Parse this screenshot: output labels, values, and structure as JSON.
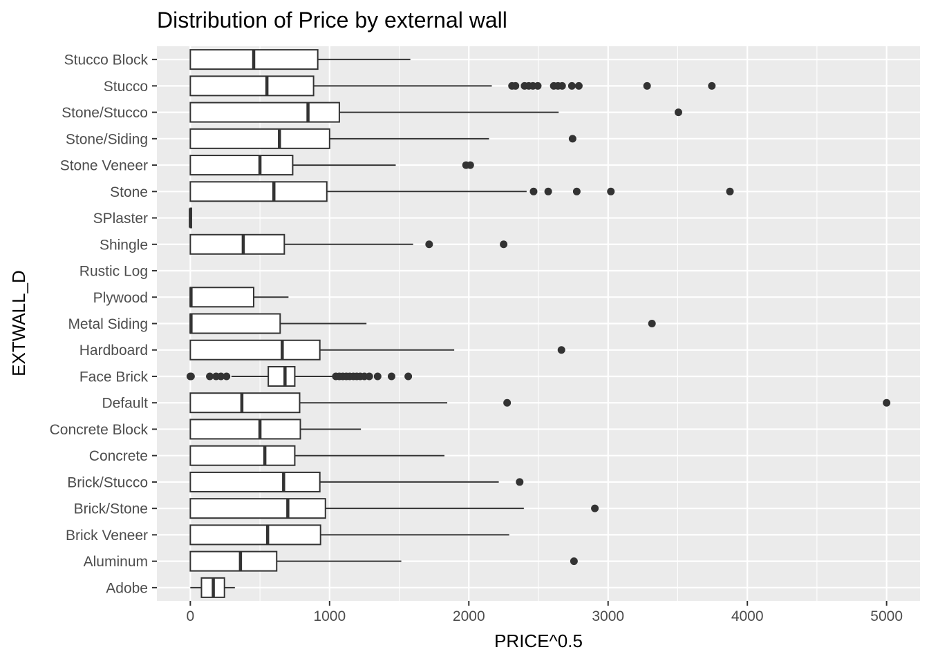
{
  "chart_data": {
    "type": "boxplot",
    "orientation": "horizontal",
    "title": "Distribution of Price by external wall",
    "xlabel": "PRICE^0.5",
    "ylabel": "EXTWALL_D",
    "xlim": [
      -240,
      5240
    ],
    "xticks": [
      0,
      1000,
      2000,
      3000,
      4000,
      5000
    ],
    "xtick_labels": [
      "0",
      "1000",
      "2000",
      "3000",
      "4000",
      "5000"
    ],
    "grid": true,
    "panel_background": "#ebebeb",
    "grid_color": "#ffffff",
    "box_color": "#333333",
    "categories": [
      "Stucco Block",
      "Stucco",
      "Stone/Stucco",
      "Stone/Siding",
      "Stone Veneer",
      "Stone",
      "SPlaster",
      "Shingle",
      "Rustic Log",
      "Plywood",
      "Metal Siding",
      "Hardboard",
      "Face Brick",
      "Default",
      "Concrete Block",
      "Concrete",
      "Brick/Stucco",
      "Brick/Stone",
      "Brick Veneer",
      "Aluminum",
      "Adobe"
    ],
    "series": [
      {
        "category": "Stucco Block",
        "whisker_low": 0,
        "q1": 0,
        "median": 455,
        "q3": 915,
        "whisker_high": 1580,
        "outliers": []
      },
      {
        "category": "Stucco",
        "whisker_low": 0,
        "q1": 0,
        "median": 550,
        "q3": 885,
        "whisker_high": 2165,
        "outliers": [
          2310,
          2335,
          2400,
          2430,
          2460,
          2495,
          2610,
          2640,
          2670,
          2740,
          2790,
          3280,
          3745
        ]
      },
      {
        "category": "Stone/Stucco",
        "whisker_low": 0,
        "q1": 0,
        "median": 845,
        "q3": 1070,
        "whisker_high": 2645,
        "outliers": [
          3505
        ]
      },
      {
        "category": "Stone/Siding",
        "whisker_low": 0,
        "q1": 0,
        "median": 640,
        "q3": 1000,
        "whisker_high": 2145,
        "outliers": [
          2745
        ]
      },
      {
        "category": "Stone Veneer",
        "whisker_low": 0,
        "q1": 0,
        "median": 500,
        "q3": 735,
        "whisker_high": 1475,
        "outliers": [
          1980,
          2010
        ]
      },
      {
        "category": "Stone",
        "whisker_low": 0,
        "q1": 0,
        "median": 600,
        "q3": 980,
        "whisker_high": 2415,
        "outliers": [
          2465,
          2570,
          2775,
          3020,
          3875
        ]
      },
      {
        "category": "SPlaster",
        "whisker_low": 0,
        "q1": 0,
        "median": 0,
        "q3": 8,
        "whisker_high": 8,
        "outliers": []
      },
      {
        "category": "Shingle",
        "whisker_low": 0,
        "q1": 0,
        "median": 380,
        "q3": 675,
        "whisker_high": 1600,
        "outliers": [
          1715,
          2250
        ]
      },
      {
        "category": "Rustic Log"
      },
      {
        "category": "Plywood",
        "whisker_low": 0,
        "q1": 0,
        "median": 5,
        "q3": 455,
        "whisker_high": 705,
        "outliers": []
      },
      {
        "category": "Metal Siding",
        "whisker_low": 0,
        "q1": 0,
        "median": 5,
        "q3": 645,
        "whisker_high": 1265,
        "outliers": [
          3315
        ]
      },
      {
        "category": "Hardboard",
        "whisker_low": 0,
        "q1": 0,
        "median": 660,
        "q3": 930,
        "whisker_high": 1895,
        "outliers": [
          2665
        ]
      },
      {
        "category": "Face Brick",
        "whisker_low": 295,
        "q1": 560,
        "median": 680,
        "q3": 750,
        "whisker_high": 1040,
        "outliers": [
          0,
          5,
          140,
          185,
          220,
          260,
          1045,
          1070,
          1095,
          1120,
          1145,
          1170,
          1195,
          1220,
          1250,
          1285,
          1345,
          1445,
          1565
        ]
      },
      {
        "category": "Default",
        "whisker_low": 0,
        "q1": 0,
        "median": 370,
        "q3": 785,
        "whisker_high": 1845,
        "outliers": [
          2275,
          5000
        ]
      },
      {
        "category": "Concrete Block",
        "whisker_low": 0,
        "q1": 0,
        "median": 500,
        "q3": 790,
        "whisker_high": 1225,
        "outliers": []
      },
      {
        "category": "Concrete",
        "whisker_low": 0,
        "q1": 0,
        "median": 535,
        "q3": 750,
        "whisker_high": 1825,
        "outliers": []
      },
      {
        "category": "Brick/Stucco",
        "whisker_low": 0,
        "q1": 0,
        "median": 670,
        "q3": 930,
        "whisker_high": 2215,
        "outliers": [
          2365
        ]
      },
      {
        "category": "Brick/Stone",
        "whisker_low": 0,
        "q1": 0,
        "median": 700,
        "q3": 970,
        "whisker_high": 2395,
        "outliers": [
          2905
        ]
      },
      {
        "category": "Brick Veneer",
        "whisker_low": 0,
        "q1": 0,
        "median": 555,
        "q3": 935,
        "whisker_high": 2290,
        "outliers": []
      },
      {
        "category": "Aluminum",
        "whisker_low": 0,
        "q1": 0,
        "median": 360,
        "q3": 620,
        "whisker_high": 1515,
        "outliers": [
          2755
        ]
      },
      {
        "category": "Adobe",
        "whisker_low": 0,
        "q1": 80,
        "median": 165,
        "q3": 245,
        "whisker_high": 320,
        "outliers": []
      }
    ]
  }
}
